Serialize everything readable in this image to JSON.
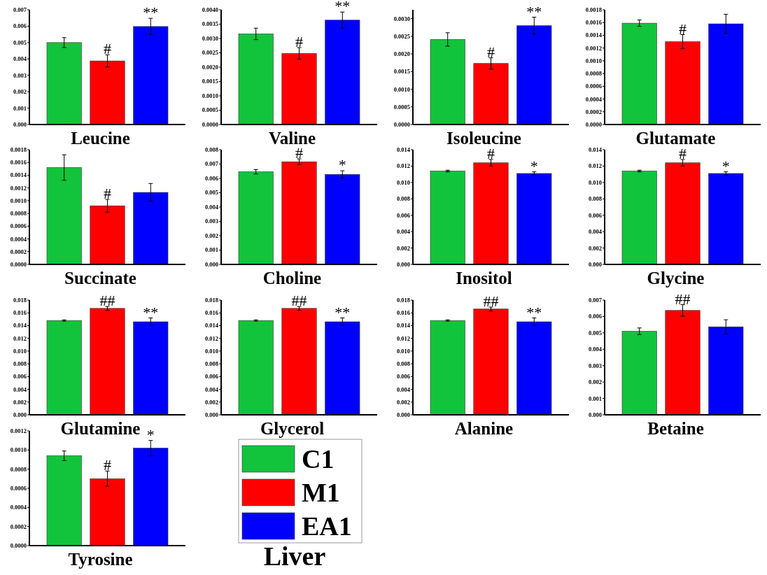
{
  "chart_data": [
    {
      "type": "bar",
      "xlabel": "Leucine",
      "categories": [
        null
      ],
      "tick_labels": "y",
      "ylim": [
        0,
        0.007
      ],
      "yticks": [
        {
          "value": 0,
          "label": "0.000"
        },
        {
          "value": 0.001,
          "label": "0.001"
        },
        {
          "value": 0.002,
          "label": "0.002"
        },
        {
          "value": 0.003,
          "label": "0.003"
        },
        {
          "value": 0.004,
          "label": "0.004"
        },
        {
          "value": 0.005,
          "label": "0.005"
        },
        {
          "value": 0.006,
          "label": "0.006"
        },
        {
          "value": 0.007,
          "label": "0.007"
        }
      ],
      "series": [
        {
          "color": "#11c43c",
          "values": [
            0.005
          ],
          "errors": [
            0.0003
          ]
        },
        {
          "color": "#ff0000",
          "values": [
            0.00388
          ],
          "errors": [
            0.00037
          ],
          "value_labels": [
            "#"
          ]
        },
        {
          "color": "#0000ff",
          "values": [
            0.00598
          ],
          "errors": [
            0.0005
          ],
          "value_labels": [
            "**"
          ]
        }
      ]
    },
    {
      "type": "bar",
      "xlabel": "Valine",
      "categories": [
        null
      ],
      "tick_labels": "y",
      "ylim": [
        0,
        0.004
      ],
      "yticks": [
        {
          "value": 0,
          "label": "0.0000"
        },
        {
          "value": 0.0005,
          "label": "0.0005"
        },
        {
          "value": 0.001,
          "label": "0.0010"
        },
        {
          "value": 0.0015,
          "label": "0.0015"
        },
        {
          "value": 0.002,
          "label": "0.0020"
        },
        {
          "value": 0.0025,
          "label": "0.0025"
        },
        {
          "value": 0.003,
          "label": "0.0030"
        },
        {
          "value": 0.0035,
          "label": "0.0035"
        },
        {
          "value": 0.004,
          "label": "0.0040"
        }
      ],
      "series": [
        {
          "color": "#11c43c",
          "values": [
            0.00316
          ],
          "errors": [
            0.0002
          ]
        },
        {
          "color": "#ff0000",
          "values": [
            0.00248
          ],
          "errors": [
            0.0002
          ],
          "value_labels": [
            "#"
          ]
        },
        {
          "color": "#0000ff",
          "values": [
            0.00364
          ],
          "errors": [
            0.00028
          ],
          "value_labels": [
            "**"
          ]
        }
      ]
    },
    {
      "type": "bar",
      "xlabel": "Isoleucine",
      "categories": [
        null
      ],
      "tick_labels": "y",
      "ylim": [
        0,
        0.00325
      ],
      "yticks": [
        {
          "value": 0,
          "label": "0.0000"
        },
        {
          "value": 0.0005,
          "label": "0.0005"
        },
        {
          "value": 0.001,
          "label": "0.0010"
        },
        {
          "value": 0.0015,
          "label": "0.0015"
        },
        {
          "value": 0.002,
          "label": "0.0020"
        },
        {
          "value": 0.0025,
          "label": "0.0025"
        },
        {
          "value": 0.003,
          "label": "0.0030"
        }
      ],
      "series": [
        {
          "color": "#11c43c",
          "values": [
            0.00241
          ],
          "errors": [
            0.00019
          ]
        },
        {
          "color": "#ff0000",
          "values": [
            0.00173
          ],
          "errors": [
            0.00016
          ],
          "value_labels": [
            "#"
          ]
        },
        {
          "color": "#0000ff",
          "values": [
            0.0028
          ],
          "errors": [
            0.00024
          ],
          "value_labels": [
            "**"
          ]
        }
      ]
    },
    {
      "type": "bar",
      "xlabel": "Glutamate",
      "categories": [
        null
      ],
      "tick_labels": "y",
      "ylim": [
        0,
        0.0018
      ],
      "yticks": [
        {
          "value": 0,
          "label": "0.0000"
        },
        {
          "value": 0.0002,
          "label": "0.0002"
        },
        {
          "value": 0.0004,
          "label": "0.0004"
        },
        {
          "value": 0.0006,
          "label": "0.0006"
        },
        {
          "value": 0.0008,
          "label": "0.0008"
        },
        {
          "value": 0.001,
          "label": "0.0010"
        },
        {
          "value": 0.0012,
          "label": "0.0012"
        },
        {
          "value": 0.0014,
          "label": "0.0014"
        },
        {
          "value": 0.0016,
          "label": "0.0016"
        },
        {
          "value": 0.0018,
          "label": "0.0018"
        }
      ],
      "series": [
        {
          "color": "#11c43c",
          "values": [
            0.00159
          ],
          "errors": [
            5e-05
          ]
        },
        {
          "color": "#ff0000",
          "values": [
            0.0013
          ],
          "errors": [
            0.00011
          ],
          "value_labels": [
            "#"
          ]
        },
        {
          "color": "#0000ff",
          "values": [
            0.00158
          ],
          "errors": [
            0.00015
          ]
        }
      ]
    },
    {
      "type": "bar",
      "xlabel": "Succinate",
      "categories": [
        null
      ],
      "tick_labels": "y",
      "ylim": [
        0,
        0.0018
      ],
      "yticks": [
        {
          "value": 0,
          "label": "0.0000"
        },
        {
          "value": 0.0002,
          "label": "0.0002"
        },
        {
          "value": 0.0004,
          "label": "0.0004"
        },
        {
          "value": 0.0006,
          "label": "0.0006"
        },
        {
          "value": 0.0008,
          "label": "0.0008"
        },
        {
          "value": 0.001,
          "label": "0.0010"
        },
        {
          "value": 0.0012,
          "label": "0.0012"
        },
        {
          "value": 0.0014,
          "label": "0.0014"
        },
        {
          "value": 0.0016,
          "label": "0.0016"
        },
        {
          "value": 0.0018,
          "label": "0.0018"
        }
      ],
      "series": [
        {
          "color": "#11c43c",
          "values": [
            0.00152
          ],
          "errors": [
            0.0002
          ]
        },
        {
          "color": "#ff0000",
          "values": [
            0.00092
          ],
          "errors": [
            0.0001
          ],
          "value_labels": [
            "#"
          ]
        },
        {
          "color": "#0000ff",
          "values": [
            0.00113
          ],
          "errors": [
            0.00014
          ]
        }
      ]
    },
    {
      "type": "bar",
      "xlabel": "Choline",
      "categories": [
        null
      ],
      "tick_labels": "y",
      "ylim": [
        0,
        0.008
      ],
      "yticks": [
        {
          "value": 0,
          "label": "0.000"
        },
        {
          "value": 0.001,
          "label": "0.001"
        },
        {
          "value": 0.002,
          "label": "0.002"
        },
        {
          "value": 0.003,
          "label": "0.003"
        },
        {
          "value": 0.004,
          "label": "0.004"
        },
        {
          "value": 0.005,
          "label": "0.005"
        },
        {
          "value": 0.006,
          "label": "0.006"
        },
        {
          "value": 0.007,
          "label": "0.007"
        },
        {
          "value": 0.008,
          "label": "0.008"
        }
      ],
      "series": [
        {
          "color": "#11c43c",
          "values": [
            0.00646
          ],
          "errors": [
            0.00015
          ]
        },
        {
          "color": "#ff0000",
          "values": [
            0.00716
          ],
          "errors": [
            0.0002
          ],
          "value_labels": [
            "#"
          ]
        },
        {
          "color": "#0000ff",
          "values": [
            0.00628
          ],
          "errors": [
            0.00025
          ],
          "value_labels": [
            "*"
          ]
        }
      ]
    },
    {
      "type": "bar",
      "xlabel": "Inositol",
      "categories": [
        null
      ],
      "tick_labels": "y",
      "ylim": [
        0,
        0.014
      ],
      "yticks": [
        {
          "value": 0,
          "label": "0.000"
        },
        {
          "value": 0.002,
          "label": "0.002"
        },
        {
          "value": 0.004,
          "label": "0.004"
        },
        {
          "value": 0.006,
          "label": "0.006"
        },
        {
          "value": 0.008,
          "label": "0.008"
        },
        {
          "value": 0.01,
          "label": "0.010"
        },
        {
          "value": 0.012,
          "label": "0.012"
        },
        {
          "value": 0.014,
          "label": "0.014"
        }
      ],
      "series": [
        {
          "color": "#11c43c",
          "values": [
            0.0114
          ],
          "errors": [
            0.0001
          ]
        },
        {
          "color": "#ff0000",
          "values": [
            0.0124
          ],
          "errors": [
            0.0004
          ],
          "value_labels": [
            "#"
          ]
        },
        {
          "color": "#0000ff",
          "values": [
            0.0111
          ],
          "errors": [
            0.0002
          ],
          "value_labels": [
            "*"
          ]
        }
      ]
    },
    {
      "type": "bar",
      "xlabel": "Glycine",
      "categories": [
        null
      ],
      "tick_labels": "y",
      "ylim": [
        0,
        0.014
      ],
      "yticks": [
        {
          "value": 0,
          "label": "0.000"
        },
        {
          "value": 0.002,
          "label": "0.002"
        },
        {
          "value": 0.004,
          "label": "0.004"
        },
        {
          "value": 0.006,
          "label": "0.006"
        },
        {
          "value": 0.008,
          "label": "0.008"
        },
        {
          "value": 0.01,
          "label": "0.010"
        },
        {
          "value": 0.012,
          "label": "0.012"
        },
        {
          "value": 0.014,
          "label": "0.014"
        }
      ],
      "series": [
        {
          "color": "#11c43c",
          "values": [
            0.0114
          ],
          "errors": [
            0.0001
          ]
        },
        {
          "color": "#ff0000",
          "values": [
            0.0124
          ],
          "errors": [
            0.0004
          ],
          "value_labels": [
            "#"
          ]
        },
        {
          "color": "#0000ff",
          "values": [
            0.0111
          ],
          "errors": [
            0.0002
          ],
          "value_labels": [
            "*"
          ]
        }
      ]
    },
    {
      "type": "bar",
      "xlabel": "Glutamine",
      "categories": [
        null
      ],
      "tick_labels": "y",
      "ylim": [
        0,
        0.018
      ],
      "yticks": [
        {
          "value": 0,
          "label": "0.000"
        },
        {
          "value": 0.002,
          "label": "0.002"
        },
        {
          "value": 0.004,
          "label": "0.004"
        },
        {
          "value": 0.006,
          "label": "0.006"
        },
        {
          "value": 0.008,
          "label": "0.008"
        },
        {
          "value": 0.01,
          "label": "0.010"
        },
        {
          "value": 0.012,
          "label": "0.012"
        },
        {
          "value": 0.014,
          "label": "0.014"
        },
        {
          "value": 0.016,
          "label": "0.016"
        },
        {
          "value": 0.018,
          "label": "0.018"
        }
      ],
      "series": [
        {
          "color": "#11c43c",
          "values": [
            0.0148
          ],
          "errors": [
            0.0001
          ]
        },
        {
          "color": "#ff0000",
          "values": [
            0.0167
          ],
          "errors": [
            0.0003
          ],
          "value_labels": [
            "##"
          ]
        },
        {
          "color": "#0000ff",
          "values": [
            0.0146
          ],
          "errors": [
            0.0006
          ],
          "value_labels": [
            "**"
          ]
        }
      ]
    },
    {
      "type": "bar",
      "xlabel": "Glycerol",
      "categories": [
        null
      ],
      "tick_labels": "y",
      "ylim": [
        0,
        0.018
      ],
      "yticks": [
        {
          "value": 0,
          "label": "0.000"
        },
        {
          "value": 0.002,
          "label": "0.002"
        },
        {
          "value": 0.004,
          "label": "0.004"
        },
        {
          "value": 0.006,
          "label": "0.006"
        },
        {
          "value": 0.008,
          "label": "0.008"
        },
        {
          "value": 0.01,
          "label": "0.010"
        },
        {
          "value": 0.012,
          "label": "0.012"
        },
        {
          "value": 0.014,
          "label": "0.014"
        },
        {
          "value": 0.016,
          "label": "0.016"
        },
        {
          "value": 0.018,
          "label": "0.018"
        }
      ],
      "series": [
        {
          "color": "#11c43c",
          "values": [
            0.0148
          ],
          "errors": [
            0.0001
          ]
        },
        {
          "color": "#ff0000",
          "values": [
            0.0167
          ],
          "errors": [
            0.0003
          ],
          "value_labels": [
            "##"
          ]
        },
        {
          "color": "#0000ff",
          "values": [
            0.0146
          ],
          "errors": [
            0.0006
          ],
          "value_labels": [
            "**"
          ]
        }
      ]
    },
    {
      "type": "bar",
      "xlabel": "Alanine",
      "categories": [
        null
      ],
      "tick_labels": "y",
      "ylim": [
        0,
        0.018
      ],
      "yticks": [
        {
          "value": 0,
          "label": "0.000"
        },
        {
          "value": 0.002,
          "label": "0.002"
        },
        {
          "value": 0.004,
          "label": "0.004"
        },
        {
          "value": 0.006,
          "label": "0.006"
        },
        {
          "value": 0.008,
          "label": "0.008"
        },
        {
          "value": 0.01,
          "label": "0.010"
        },
        {
          "value": 0.012,
          "label": "0.012"
        },
        {
          "value": 0.014,
          "label": "0.014"
        },
        {
          "value": 0.016,
          "label": "0.016"
        },
        {
          "value": 0.018,
          "label": "0.018"
        }
      ],
      "series": [
        {
          "color": "#11c43c",
          "values": [
            0.0148
          ],
          "errors": [
            0.0001
          ]
        },
        {
          "color": "#ff0000",
          "values": [
            0.0166
          ],
          "errors": [
            0.0003
          ],
          "value_labels": [
            "##"
          ]
        },
        {
          "color": "#0000ff",
          "values": [
            0.0146
          ],
          "errors": [
            0.0006
          ],
          "value_labels": [
            "**"
          ]
        }
      ]
    },
    {
      "type": "bar",
      "xlabel": "Betaine",
      "categories": [
        null
      ],
      "tick_labels": "y",
      "ylim": [
        0,
        0.007
      ],
      "yticks": [
        {
          "value": 0,
          "label": "0.000"
        },
        {
          "value": 0.001,
          "label": "0.001"
        },
        {
          "value": 0.002,
          "label": "0.002"
        },
        {
          "value": 0.003,
          "label": "0.003"
        },
        {
          "value": 0.004,
          "label": "0.004"
        },
        {
          "value": 0.005,
          "label": "0.005"
        },
        {
          "value": 0.006,
          "label": "0.006"
        },
        {
          "value": 0.007,
          "label": "0.007"
        }
      ],
      "series": [
        {
          "color": "#11c43c",
          "values": [
            0.0051
          ],
          "errors": [
            0.0002
          ]
        },
        {
          "color": "#ff0000",
          "values": [
            0.00637
          ],
          "errors": [
            0.00035
          ],
          "value_labels": [
            "##"
          ]
        },
        {
          "color": "#0000ff",
          "values": [
            0.00537
          ],
          "errors": [
            0.00043
          ]
        }
      ]
    },
    {
      "type": "bar",
      "xlabel": "Tyrosine",
      "categories": [
        null
      ],
      "tick_labels": "y",
      "legend": "right",
      "annotations": [
        "Liver"
      ],
      "ylim": [
        0,
        0.0012
      ],
      "yticks": [
        {
          "value": 0,
          "label": "0.0000"
        },
        {
          "value": 0.0002,
          "label": "0.0002"
        },
        {
          "value": 0.0004,
          "label": "0.0004"
        },
        {
          "value": 0.0006,
          "label": "0.0006"
        },
        {
          "value": 0.0008,
          "label": "0.0008"
        },
        {
          "value": 0.001,
          "label": "0.0010"
        },
        {
          "value": 0.0012,
          "label": "0.0012"
        }
      ],
      "series": [
        {
          "name": "C1",
          "color": "#11c43c",
          "values": [
            0.00094
          ],
          "errors": [
            5e-05
          ]
        },
        {
          "name": "M1",
          "color": "#ff0000",
          "values": [
            0.0007
          ],
          "errors": [
            8e-05
          ],
          "value_labels": [
            "#"
          ]
        },
        {
          "name": "EA1",
          "color": "#0000ff",
          "values": [
            0.00102
          ],
          "errors": [
            8e-05
          ],
          "value_labels": [
            "*"
          ]
        }
      ]
    }
  ]
}
